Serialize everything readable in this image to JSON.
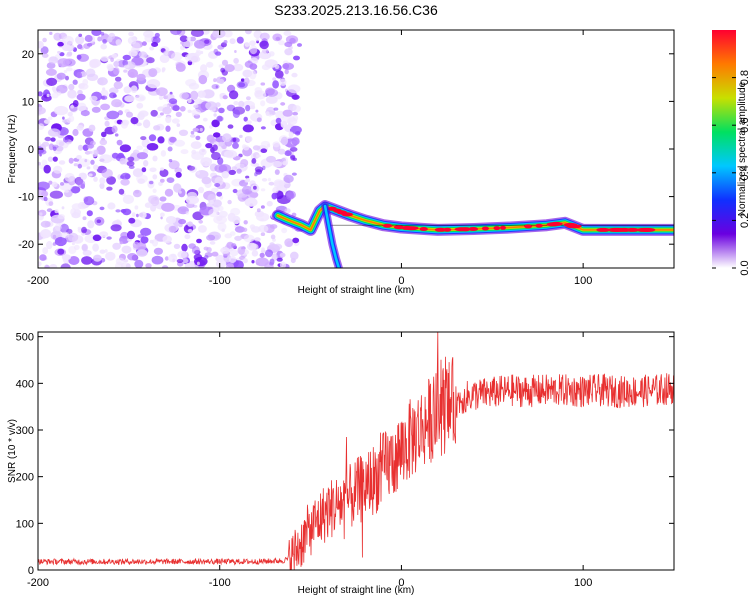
{
  "figure_title": "S233.2025.213.16.56.C36",
  "chart_data": [
    {
      "type": "heatmap",
      "xlabel": "Height of straight line (km)",
      "ylabel": "Frequency (Hz)",
      "xlim": [
        -200,
        150
      ],
      "ylim": [
        -25,
        25
      ],
      "xticks": [
        -200,
        -100,
        0,
        100
      ],
      "yticks": [
        -20,
        -10,
        0,
        10,
        20
      ],
      "noise_region_x": [
        -200,
        -62
      ],
      "signal_track": [
        {
          "x": -68,
          "y": -14
        },
        {
          "x": -62,
          "y": -15
        },
        {
          "x": -55,
          "y": -16
        },
        {
          "x": -50,
          "y": -17
        },
        {
          "x": -45,
          "y": -13
        },
        {
          "x": -42,
          "y": -12
        },
        {
          "x": -35,
          "y": -13
        },
        {
          "x": -28,
          "y": -14
        },
        {
          "x": -20,
          "y": -15
        },
        {
          "x": -10,
          "y": -16
        },
        {
          "x": 0,
          "y": -16.5
        },
        {
          "x": 20,
          "y": -17
        },
        {
          "x": 40,
          "y": -16.8
        },
        {
          "x": 60,
          "y": -16.5
        },
        {
          "x": 80,
          "y": -16
        },
        {
          "x": 90,
          "y": -15.5
        },
        {
          "x": 100,
          "y": -17
        },
        {
          "x": 120,
          "y": -17
        },
        {
          "x": 150,
          "y": -17
        }
      ],
      "colorbar": {
        "label": "Normalized spectral amplitude",
        "range": [
          0,
          1
        ],
        "ticks": [
          "0.0",
          "0.2",
          "0.4",
          "0.6",
          "0.8"
        ],
        "colormap": [
          "#ffffff",
          "#6a00e0",
          "#1030ff",
          "#00c8ff",
          "#00e060",
          "#c8e000",
          "#ff7a00",
          "#ff0030"
        ]
      }
    },
    {
      "type": "line",
      "xlabel": "Height of straight line (km)",
      "ylabel": "SNR (10 * v/v)",
      "xlim": [
        -200,
        150
      ],
      "ylim": [
        0,
        510
      ],
      "xticks": [
        -200,
        -100,
        0,
        100
      ],
      "yticks": [
        0,
        100,
        200,
        300,
        400,
        500
      ],
      "color": "#e83030",
      "series": [
        {
          "x": [
            -200,
            -180,
            -160,
            -140,
            -120,
            -100,
            -80,
            -65,
            -60,
            -55,
            -50,
            -45,
            -40,
            -35,
            -30,
            -25,
            -20,
            -15,
            -10,
            -5,
            0,
            5,
            10,
            15,
            20,
            25,
            30,
            35,
            40,
            50,
            60,
            70,
            80,
            90,
            100,
            110,
            120,
            130,
            140,
            150
          ],
          "y": [
            18,
            18,
            18,
            18,
            18,
            18,
            18,
            20,
            28,
            60,
            90,
            110,
            130,
            140,
            150,
            165,
            180,
            195,
            215,
            235,
            255,
            280,
            300,
            320,
            335,
            350,
            360,
            370,
            375,
            380,
            385,
            383,
            385,
            385,
            383,
            385,
            382,
            383,
            385,
            390
          ]
        }
      ]
    }
  ]
}
